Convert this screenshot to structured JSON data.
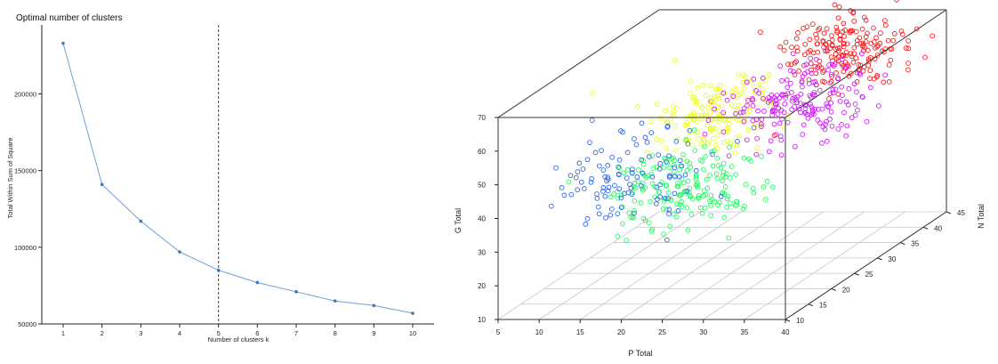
{
  "colors": {
    "line": "#6a9fd8",
    "point": "#3f78b8",
    "axis": "#222222",
    "box": "#333333",
    "grid": "#c8c8c8",
    "clusters": [
      "#ff1a1a",
      "#e9ff1a",
      "#d21aff",
      "#1aff5a",
      "#2a66e8"
    ]
  },
  "chart_data": [
    {
      "type": "line",
      "title": "Optimal number of clusters",
      "xlabel": "Number of clusters k",
      "ylabel": "Total Within Sum of Square",
      "categories": [
        1,
        2,
        3,
        4,
        5,
        6,
        7,
        8,
        9,
        10
      ],
      "values": [
        233000,
        141000,
        117000,
        97000,
        85000,
        77000,
        71000,
        65000,
        62000,
        57000
      ],
      "xlim": [
        0.45,
        10.55
      ],
      "ylim": [
        50000,
        245000
      ],
      "yticks": [
        50000,
        100000,
        150000,
        200000
      ],
      "vline": 5,
      "grid": false
    },
    {
      "type": "scatter",
      "xlabel": "P Total",
      "ylabel": "G Total",
      "zlabel": "N Total",
      "xlim": [
        5,
        40
      ],
      "zlim": [
        10,
        70
      ],
      "ylim": [
        10,
        45
      ],
      "xticks": [
        5,
        10,
        15,
        20,
        25,
        30,
        35,
        40
      ],
      "zticks": [
        10,
        20,
        30,
        40,
        50,
        60,
        70
      ],
      "yticks": [
        10,
        15,
        20,
        25,
        30,
        35,
        40,
        45
      ],
      "grid": true,
      "series": [
        {
          "center": [
            31,
            39,
            64
          ],
          "spread": [
            3.5,
            3.5,
            5
          ],
          "count": 200
        },
        {
          "center": [
            23,
            25,
            57
          ],
          "spread": [
            3.5,
            4,
            5
          ],
          "count": 170
        },
        {
          "center": [
            30,
            31,
            55
          ],
          "spread": [
            3.5,
            4,
            5
          ],
          "count": 190
        },
        {
          "center": [
            23,
            18,
            42
          ],
          "spread": [
            4,
            3.5,
            5
          ],
          "count": 190
        },
        {
          "center": [
            16,
            19,
            45
          ],
          "spread": [
            4,
            3.5,
            6
          ],
          "count": 110
        }
      ]
    }
  ]
}
